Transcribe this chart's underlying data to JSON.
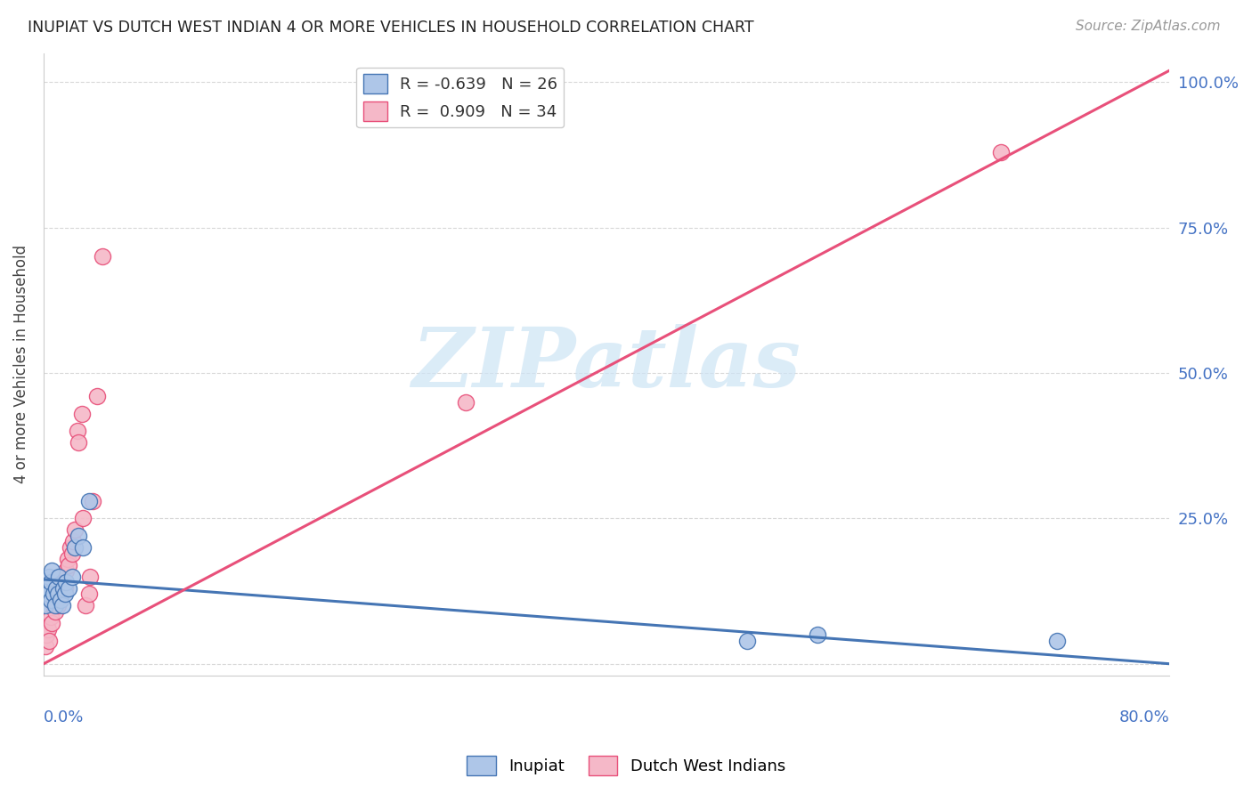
{
  "title": "INUPIAT VS DUTCH WEST INDIAN 4 OR MORE VEHICLES IN HOUSEHOLD CORRELATION CHART",
  "source": "Source: ZipAtlas.com",
  "ylabel": "4 or more Vehicles in Household",
  "xlim": [
    0.0,
    0.8
  ],
  "ylim": [
    -0.02,
    1.05
  ],
  "inupiat_R": -0.639,
  "inupiat_N": 26,
  "dutch_R": 0.909,
  "dutch_N": 34,
  "inupiat_color": "#aec6e8",
  "dutch_color": "#f5b8c8",
  "inupiat_line_color": "#4575b4",
  "dutch_line_color": "#e8507a",
  "inupiat_x": [
    0.001,
    0.002,
    0.003,
    0.004,
    0.005,
    0.005,
    0.006,
    0.007,
    0.008,
    0.009,
    0.01,
    0.011,
    0.012,
    0.013,
    0.014,
    0.015,
    0.016,
    0.018,
    0.02,
    0.022,
    0.025,
    0.028,
    0.032,
    0.5,
    0.55,
    0.72
  ],
  "inupiat_y": [
    0.1,
    0.13,
    0.12,
    0.15,
    0.11,
    0.14,
    0.16,
    0.12,
    0.1,
    0.13,
    0.12,
    0.15,
    0.11,
    0.1,
    0.13,
    0.12,
    0.14,
    0.13,
    0.15,
    0.2,
    0.22,
    0.2,
    0.28,
    0.04,
    0.05,
    0.04
  ],
  "dutch_x": [
    0.001,
    0.002,
    0.003,
    0.004,
    0.005,
    0.006,
    0.007,
    0.008,
    0.009,
    0.01,
    0.011,
    0.012,
    0.013,
    0.014,
    0.015,
    0.016,
    0.017,
    0.018,
    0.019,
    0.02,
    0.021,
    0.022,
    0.024,
    0.025,
    0.027,
    0.028,
    0.03,
    0.032,
    0.033,
    0.035,
    0.038,
    0.042,
    0.3,
    0.68
  ],
  "dutch_y": [
    0.03,
    0.05,
    0.06,
    0.04,
    0.08,
    0.07,
    0.1,
    0.09,
    0.11,
    0.1,
    0.13,
    0.12,
    0.14,
    0.15,
    0.13,
    0.16,
    0.18,
    0.17,
    0.2,
    0.19,
    0.21,
    0.23,
    0.4,
    0.38,
    0.43,
    0.25,
    0.1,
    0.12,
    0.15,
    0.28,
    0.46,
    0.7,
    0.45,
    0.88
  ],
  "inupiat_line_x": [
    0.0,
    0.8
  ],
  "inupiat_line_y": [
    0.145,
    0.0
  ],
  "dutch_line_x": [
    0.0,
    0.8
  ],
  "dutch_line_y": [
    0.0,
    1.02
  ],
  "ytick_positions": [
    0.0,
    0.25,
    0.5,
    0.75,
    1.0
  ],
  "ytick_labels_right": [
    "",
    "25.0%",
    "50.0%",
    "75.0%",
    "100.0%"
  ],
  "right_label_color": "#4472c4",
  "title_color": "#222222",
  "source_color": "#999999",
  "watermark_color": "#cde4f5",
  "grid_color": "#d8d8d8"
}
